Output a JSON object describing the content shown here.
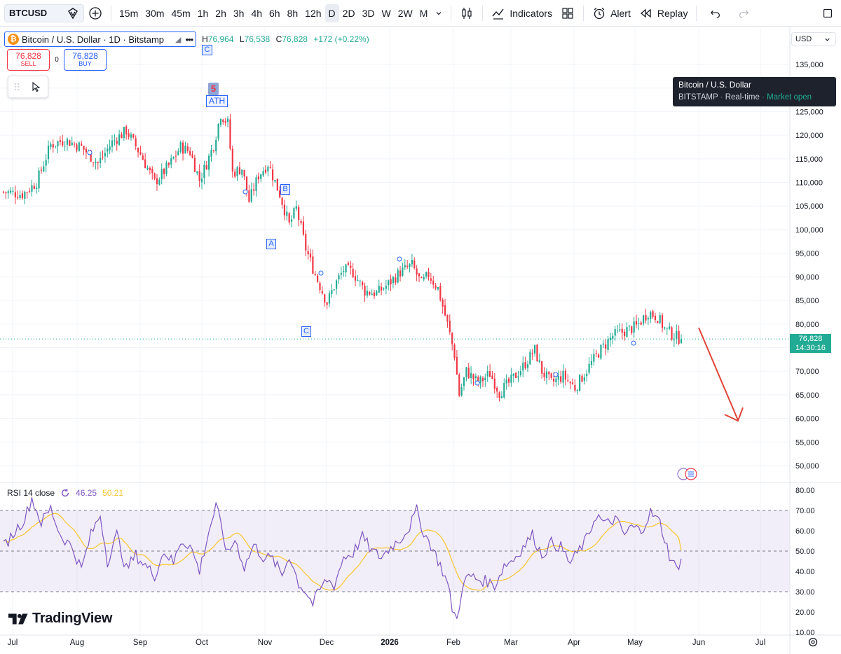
{
  "toolbar": {
    "symbol": "BTCUSD",
    "timeframes": [
      "15m",
      "30m",
      "45m",
      "1h",
      "2h",
      "3h",
      "4h",
      "6h",
      "8h",
      "12h",
      "D",
      "2D",
      "3D",
      "W",
      "2W",
      "M"
    ],
    "active_timeframe": "D",
    "indicators_label": "Indicators",
    "alert_label": "Alert",
    "replay_label": "Replay"
  },
  "legend": {
    "title": "Bitcoin / U.S. Dollar · 1D · Bitstamp",
    "high_label": "H",
    "high": "76,964",
    "low_label": "L",
    "low": "76,538",
    "close_label": "C",
    "close": "76,828",
    "change": "+172 (+0.22%)"
  },
  "trade": {
    "sell_price": "76,828",
    "sell_label": "SELL",
    "spread": "0",
    "buy_price": "76,828",
    "buy_label": "BUY"
  },
  "price_scale": {
    "currency": "USD",
    "last_price": "76,828",
    "countdown": "14:30:16"
  },
  "tooltip": {
    "name": "Bitcoin / U.S. Dollar",
    "exchange": "BITSTAMP",
    "mode": "Real-time",
    "status": "Market open"
  },
  "annotations": {
    "wave": "5",
    "ath": "ATH",
    "top_c": "C",
    "a": "A",
    "b": "B",
    "c": "C"
  },
  "rsi": {
    "label": "RSI 14 close",
    "value": "46.25",
    "ma_value": "50.21",
    "ticks": [
      "80.00",
      "70.00",
      "60.00",
      "50.00",
      "40.00",
      "30.00",
      "20.00",
      "10.00"
    ],
    "upper_band": 70,
    "middle_band": 50,
    "lower_band": 30
  },
  "logo": "TradingView",
  "colors": {
    "up": "#22ab94",
    "down": "#f23645",
    "rsi_line": "#7e57c2",
    "rsi_ma": "#f7c62f",
    "accent": "#2962ff"
  },
  "chart_data": {
    "type": "candlestick",
    "title": "Bitcoin / U.S. Dollar · 1D · Bitstamp",
    "y_ticks": [
      135000,
      130000,
      125000,
      120000,
      115000,
      110000,
      105000,
      100000,
      95000,
      90000,
      85000,
      80000,
      75000,
      70000,
      65000,
      60000,
      55000,
      50000
    ],
    "y_tick_labels": [
      "135,000",
      "130,000",
      "125,000",
      "120,000",
      "115,000",
      "110,000",
      "105,000",
      "100,000",
      "95,000",
      "90,000",
      "85,000",
      "80,000",
      "75,000",
      "70,000",
      "65,000",
      "60,000",
      "55,000",
      "50,000"
    ],
    "x_tick_labels": [
      "Jul",
      "Aug",
      "Sep",
      "Oct",
      "Nov",
      "Dec",
      "2026",
      "Feb",
      "Mar",
      "Apr",
      "May",
      "Jun",
      "Jul"
    ],
    "last_close": 76828,
    "close_path": [
      [
        0,
        108000
      ],
      [
        8,
        107500
      ],
      [
        14,
        110000
      ],
      [
        20,
        118000
      ],
      [
        26,
        119000
      ],
      [
        33,
        117500
      ],
      [
        40,
        114000
      ],
      [
        46,
        118500
      ],
      [
        52,
        121000
      ],
      [
        58,
        116000
      ],
      [
        64,
        110000
      ],
      [
        70,
        113500
      ],
      [
        75,
        117500
      ],
      [
        79,
        116500
      ],
      [
        83,
        110500
      ],
      [
        86,
        114000
      ],
      [
        89,
        118000
      ],
      [
        92,
        124500
      ],
      [
        95,
        122500
      ],
      [
        97,
        112000
      ],
      [
        101,
        113000
      ],
      [
        104,
        106000
      ],
      [
        108,
        111500
      ],
      [
        112,
        114000
      ],
      [
        117,
        107500
      ],
      [
        121,
        101000
      ],
      [
        124,
        104500
      ],
      [
        128,
        96000
      ],
      [
        132,
        90500
      ],
      [
        137,
        84500
      ],
      [
        140,
        88000
      ],
      [
        144,
        91500
      ],
      [
        148,
        91000
      ],
      [
        153,
        87000
      ],
      [
        158,
        86500
      ],
      [
        163,
        88500
      ],
      [
        168,
        91000
      ],
      [
        173,
        92500
      ],
      [
        177,
        88500
      ],
      [
        180,
        90500
      ],
      [
        184,
        87500
      ],
      [
        188,
        80000
      ],
      [
        191,
        73500
      ],
      [
        193,
        65000
      ],
      [
        196,
        70000
      ],
      [
        201,
        67500
      ],
      [
        206,
        69500
      ],
      [
        210,
        65500
      ],
      [
        215,
        68000
      ],
      [
        220,
        71000
      ],
      [
        225,
        74500
      ],
      [
        228,
        70000
      ],
      [
        232,
        67500
      ],
      [
        237,
        69000
      ],
      [
        242,
        66500
      ],
      [
        246,
        69500
      ],
      [
        252,
        74000
      ],
      [
        258,
        77500
      ],
      [
        263,
        78500
      ],
      [
        268,
        79500
      ],
      [
        273,
        82500
      ],
      [
        277,
        81500
      ],
      [
        280,
        79000
      ],
      [
        284,
        77500
      ],
      [
        287,
        76828
      ]
    ],
    "rsi_path": [
      [
        0,
        52
      ],
      [
        5,
        60
      ],
      [
        9,
        66
      ],
      [
        12,
        76
      ],
      [
        16,
        64
      ],
      [
        20,
        71
      ],
      [
        24,
        58
      ],
      [
        29,
        52
      ],
      [
        33,
        41
      ],
      [
        37,
        58
      ],
      [
        41,
        68
      ],
      [
        44,
        45
      ],
      [
        48,
        58
      ],
      [
        52,
        41
      ],
      [
        56,
        48
      ],
      [
        60,
        43
      ],
      [
        64,
        38
      ],
      [
        68,
        50
      ],
      [
        72,
        44
      ],
      [
        75,
        55
      ],
      [
        79,
        53
      ],
      [
        83,
        40
      ],
      [
        87,
        60
      ],
      [
        90,
        72
      ],
      [
        92,
        63
      ],
      [
        95,
        48
      ],
      [
        98,
        56
      ],
      [
        102,
        42
      ],
      [
        106,
        53
      ],
      [
        110,
        47
      ],
      [
        114,
        46
      ],
      [
        118,
        38
      ],
      [
        121,
        48
      ],
      [
        125,
        34
      ],
      [
        128,
        30
      ],
      [
        131,
        24
      ],
      [
        134,
        31
      ],
      [
        137,
        36
      ],
      [
        140,
        33
      ],
      [
        144,
        47
      ],
      [
        148,
        49
      ],
      [
        152,
        57
      ],
      [
        156,
        50
      ],
      [
        160,
        47
      ],
      [
        164,
        52
      ],
      [
        168,
        56
      ],
      [
        172,
        62
      ],
      [
        175,
        70
      ],
      [
        178,
        59
      ],
      [
        181,
        53
      ],
      [
        185,
        43
      ],
      [
        188,
        34
      ],
      [
        190,
        22
      ],
      [
        192,
        16
      ],
      [
        194,
        31
      ],
      [
        197,
        38
      ],
      [
        201,
        36
      ],
      [
        205,
        35
      ],
      [
        208,
        33
      ],
      [
        212,
        43
      ],
      [
        216,
        46
      ],
      [
        220,
        52
      ],
      [
        224,
        58
      ],
      [
        228,
        48
      ],
      [
        232,
        54
      ],
      [
        236,
        52
      ],
      [
        240,
        44
      ],
      [
        243,
        49
      ],
      [
        247,
        56
      ],
      [
        251,
        68
      ],
      [
        255,
        63
      ],
      [
        259,
        66
      ],
      [
        263,
        58
      ],
      [
        266,
        62
      ],
      [
        270,
        60
      ],
      [
        274,
        69
      ],
      [
        278,
        64
      ],
      [
        282,
        48
      ],
      [
        285,
        41
      ],
      [
        287,
        46.25
      ]
    ]
  }
}
